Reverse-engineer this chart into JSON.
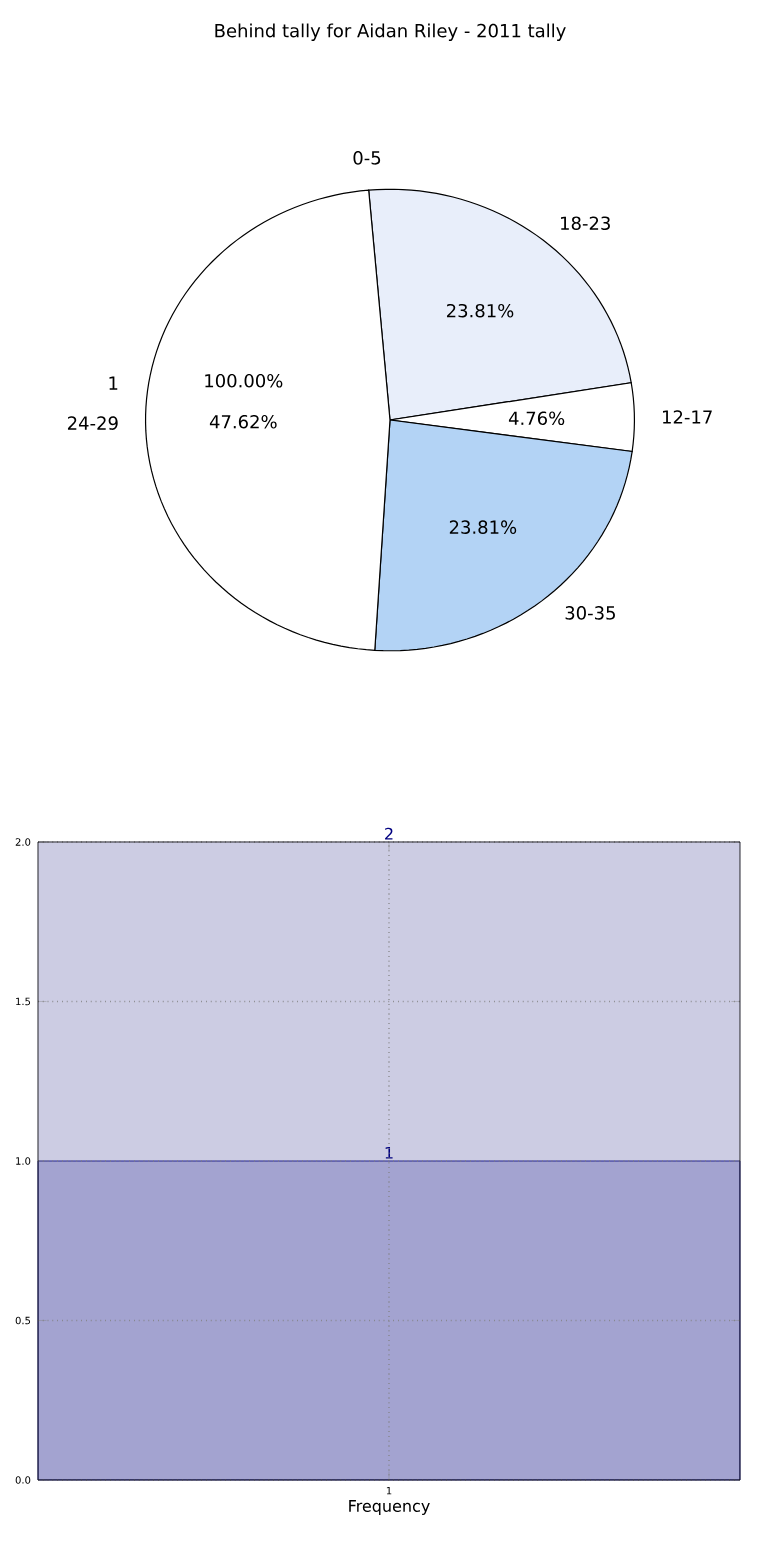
{
  "chart_data": [
    {
      "type": "pie",
      "title": "Behind tally for Aidan Riley - 2011 tally",
      "categories": [
        "18-23",
        "12-17",
        "30-35",
        "24-29",
        "0-5"
      ],
      "values": [
        23.81,
        4.76,
        23.81,
        47.62,
        0
      ],
      "colors": [
        "#e8eefa",
        "#ffffff",
        "#b3d3f5",
        "#ffffff",
        "#ffffff"
      ],
      "value_labels": [
        "23.81%",
        "4.76%",
        "23.81%",
        "47.62%",
        null
      ],
      "annotations": [
        "1",
        "100.00%"
      ]
    },
    {
      "type": "bar",
      "categories": [
        "1"
      ],
      "xlabel": "Frequency",
      "stacked": true,
      "series": [
        {
          "color": "#a3a3d0",
          "values": [
            1
          ],
          "value_labels": [
            "1"
          ]
        },
        {
          "color": "#cccce3",
          "values": [
            1
          ]
        }
      ],
      "totals": [
        "2"
      ],
      "ylim": [
        0,
        2
      ],
      "yticks": [
        {
          "value": 0,
          "label": "0.0"
        },
        {
          "value": 0.5,
          "label": "0.5"
        },
        {
          "value": 1,
          "label": "1.0"
        },
        {
          "value": 1.5,
          "label": "1.5"
        },
        {
          "value": 2,
          "label": "2.0"
        }
      ],
      "grid": true
    }
  ]
}
